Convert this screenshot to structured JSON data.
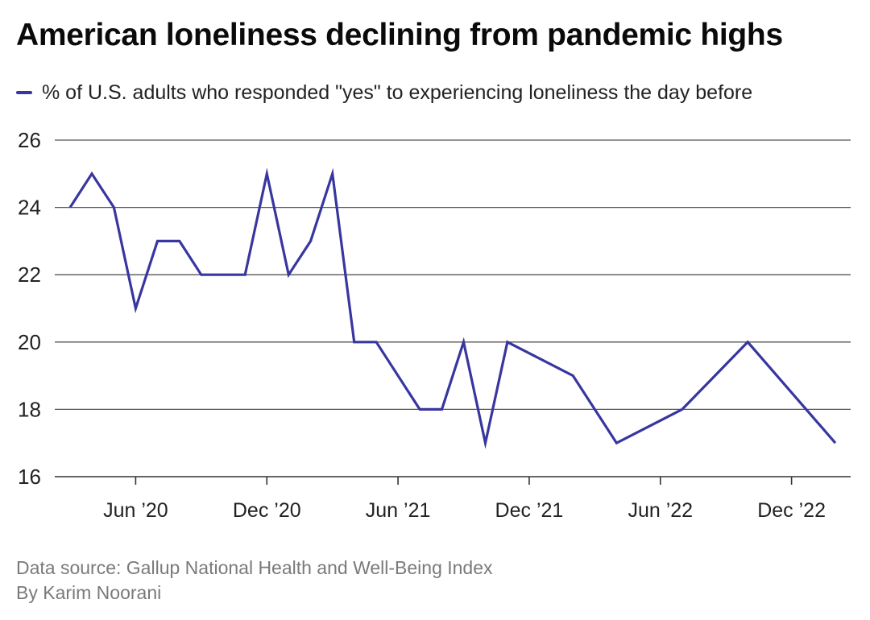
{
  "chart_data": {
    "type": "line",
    "title": "American loneliness declining from pandemic highs",
    "series": [
      {
        "name": "% of U.S. adults who responded \"yes\" to experiencing loneliness the day before",
        "color": "#38369f",
        "points": [
          {
            "x": 2020.25,
            "y": 24
          },
          {
            "x": 2020.333,
            "y": 25
          },
          {
            "x": 2020.417,
            "y": 24
          },
          {
            "x": 2020.5,
            "y": 21
          },
          {
            "x": 2020.583,
            "y": 23
          },
          {
            "x": 2020.667,
            "y": 23
          },
          {
            "x": 2020.75,
            "y": 22
          },
          {
            "x": 2020.833,
            "y": 22
          },
          {
            "x": 2020.917,
            "y": 22
          },
          {
            "x": 2021.0,
            "y": 25
          },
          {
            "x": 2021.083,
            "y": 22
          },
          {
            "x": 2021.167,
            "y": 23
          },
          {
            "x": 2021.25,
            "y": 25
          },
          {
            "x": 2021.333,
            "y": 20
          },
          {
            "x": 2021.417,
            "y": 20
          },
          {
            "x": 2021.583,
            "y": 18
          },
          {
            "x": 2021.667,
            "y": 18
          },
          {
            "x": 2021.75,
            "y": 20
          },
          {
            "x": 2021.833,
            "y": 17
          },
          {
            "x": 2021.917,
            "y": 20
          },
          {
            "x": 2022.167,
            "y": 19
          },
          {
            "x": 2022.333,
            "y": 17
          },
          {
            "x": 2022.583,
            "y": 18
          },
          {
            "x": 2022.833,
            "y": 20
          },
          {
            "x": 2023.167,
            "y": 17
          }
        ]
      }
    ],
    "x_ticks": [
      {
        "value": 2020.5,
        "label": "Jun ’20"
      },
      {
        "value": 2021.0,
        "label": "Dec ’20"
      },
      {
        "value": 2021.5,
        "label": "Jun ’21"
      },
      {
        "value": 2022.0,
        "label": "Dec ’21"
      },
      {
        "value": 2022.5,
        "label": "Jun ’22"
      },
      {
        "value": 2023.0,
        "label": "Dec ’22"
      }
    ],
    "xlim": [
      2020.25,
      2023.167
    ],
    "ylim": [
      16,
      26
    ],
    "y_ticks": [
      16,
      18,
      20,
      22,
      24,
      26
    ],
    "grid": true,
    "legend_position": "top-left",
    "xlabel": "",
    "ylabel": ""
  },
  "footer": {
    "source": "Data source: Gallup National Health and Well-Being Index",
    "byline": "By Karim Noorani"
  },
  "colors": {
    "line": "#38369f",
    "grid": "#555555",
    "axis": "#333333"
  }
}
